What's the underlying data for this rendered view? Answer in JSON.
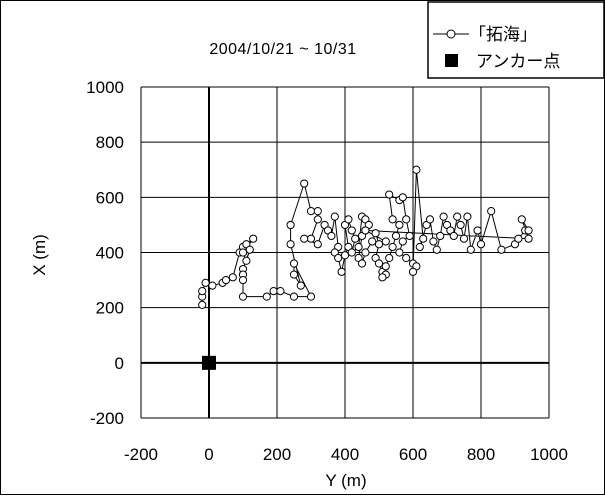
{
  "chart_data": {
    "type": "scatter",
    "title": "",
    "subtitle": "2004/10/21 ~ 10/31",
    "xlabel": "Y (m)",
    "ylabel": "X (m)",
    "xlim": [
      -200,
      1000
    ],
    "ylim": [
      -200,
      1000
    ],
    "x_ticks": [
      -200,
      0,
      200,
      400,
      600,
      800,
      1000
    ],
    "y_ticks": [
      -200,
      0,
      200,
      400,
      600,
      800,
      1000
    ],
    "grid": true,
    "legend_position": "top-right",
    "legend": [
      {
        "label": "「拓海」",
        "marker": "open-circle-line"
      },
      {
        "label": "アンカー点",
        "marker": "filled-square"
      }
    ],
    "series": [
      {
        "name": "「拓海」",
        "connected": true,
        "marker": "open-circle",
        "points": [
          [
            -20,
            210
          ],
          [
            -20,
            240
          ],
          [
            -20,
            260
          ],
          [
            -10,
            290
          ],
          [
            10,
            280
          ],
          [
            40,
            290
          ],
          [
            50,
            300
          ],
          [
            70,
            310
          ],
          [
            90,
            400
          ],
          [
            100,
            420
          ],
          [
            110,
            430
          ],
          [
            130,
            450
          ],
          [
            100,
            400
          ],
          [
            110,
            370
          ],
          [
            120,
            410
          ],
          [
            100,
            340
          ],
          [
            100,
            320
          ],
          [
            100,
            300
          ],
          [
            100,
            240
          ],
          [
            170,
            240
          ],
          [
            190,
            260
          ],
          [
            210,
            260
          ],
          [
            250,
            240
          ],
          [
            300,
            240
          ],
          [
            250,
            360
          ],
          [
            250,
            320
          ],
          [
            270,
            280
          ],
          [
            240,
            430
          ],
          [
            240,
            500
          ],
          [
            280,
            650
          ],
          [
            300,
            550
          ],
          [
            320,
            550
          ],
          [
            320,
            520
          ],
          [
            300,
            450
          ],
          [
            280,
            450
          ],
          [
            320,
            430
          ],
          [
            340,
            500
          ],
          [
            350,
            480
          ],
          [
            360,
            460
          ],
          [
            370,
            530
          ],
          [
            380,
            420
          ],
          [
            370,
            400
          ],
          [
            380,
            380
          ],
          [
            390,
            330
          ],
          [
            400,
            390
          ],
          [
            410,
            420
          ],
          [
            400,
            500
          ],
          [
            410,
            520
          ],
          [
            420,
            480
          ],
          [
            430,
            450
          ],
          [
            420,
            400
          ],
          [
            440,
            420
          ],
          [
            450,
            530
          ],
          [
            460,
            520
          ],
          [
            470,
            500
          ],
          [
            460,
            480
          ],
          [
            450,
            460
          ],
          [
            440,
            380
          ],
          [
            450,
            360
          ],
          [
            460,
            400
          ],
          [
            480,
            440
          ],
          [
            490,
            470
          ],
          [
            500,
            430
          ],
          [
            490,
            380
          ],
          [
            500,
            360
          ],
          [
            510,
            330
          ],
          [
            520,
            320
          ],
          [
            510,
            310
          ],
          [
            520,
            350
          ],
          [
            530,
            380
          ],
          [
            540,
            420
          ],
          [
            550,
            460
          ],
          [
            560,
            500
          ],
          [
            540,
            520
          ],
          [
            530,
            610
          ],
          [
            560,
            590
          ],
          [
            570,
            600
          ],
          [
            580,
            520
          ],
          [
            590,
            460
          ],
          [
            570,
            440
          ],
          [
            560,
            400
          ],
          [
            580,
            380
          ],
          [
            600,
            360
          ],
          [
            610,
            350
          ],
          [
            600,
            330
          ],
          [
            610,
            700
          ],
          [
            630,
            450
          ],
          [
            620,
            420
          ],
          [
            640,
            500
          ],
          [
            650,
            520
          ],
          [
            660,
            440
          ],
          [
            670,
            410
          ],
          [
            680,
            460
          ],
          [
            690,
            530
          ],
          [
            700,
            500
          ],
          [
            710,
            480
          ],
          [
            720,
            460
          ],
          [
            730,
            530
          ],
          [
            740,
            500
          ],
          [
            750,
            450
          ],
          [
            760,
            530
          ],
          [
            770,
            410
          ],
          [
            790,
            480
          ],
          [
            800,
            430
          ],
          [
            830,
            550
          ],
          [
            860,
            410
          ],
          [
            900,
            430
          ],
          [
            910,
            450
          ],
          [
            930,
            480
          ],
          [
            940,
            480
          ],
          [
            920,
            520
          ],
          [
            940,
            450
          ],
          [
            460,
            480
          ],
          [
            520,
            440
          ]
        ]
      },
      {
        "name": "アンカー点",
        "connected": false,
        "marker": "filled-square",
        "points": [
          [
            0,
            0
          ]
        ]
      }
    ]
  }
}
